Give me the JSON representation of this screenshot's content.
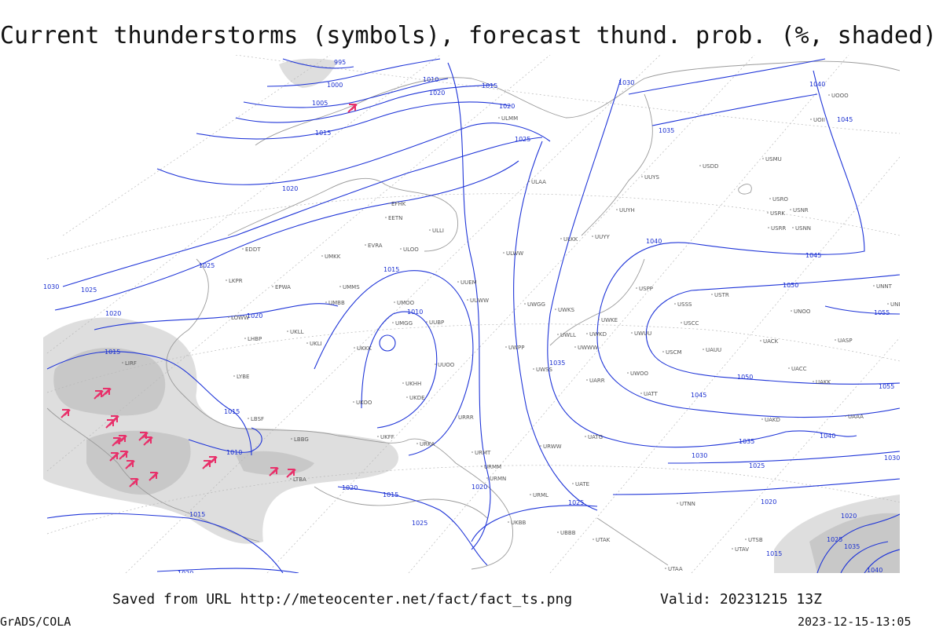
{
  "title": "Current thunderstorms (symbols), forecast thund. prob. (%, shaded)",
  "footer": {
    "saved": "Saved from URL http://meteocenter.net/fact/fact_ts.png",
    "valid": "Valid: 20231215 13Z",
    "credit": "GrADS/COLA",
    "timestamp": "2023-12-15-13:05"
  },
  "isobar_labels": [
    "995",
    "1000",
    "1005",
    "1010",
    "1015",
    "1020",
    "1015",
    "1020",
    "1025",
    "1030",
    "1035",
    "1040",
    "1045",
    "1020",
    "1025",
    "1030",
    "1025",
    "1020",
    "1020",
    "1015",
    "1010",
    "1015",
    "1015",
    "1010",
    "1040",
    "1045",
    "1050",
    "1055",
    "1050",
    "1045",
    "1035",
    "1055",
    "1040",
    "1035",
    "1030",
    "1025",
    "1025",
    "1020",
    "1020",
    "1015",
    "1025",
    "1020",
    "1015",
    "1020",
    "1030",
    "1025",
    "1020",
    "1035",
    "1040",
    "1015"
  ],
  "stations": [
    "ULAA",
    "ULLI",
    "EFHK",
    "EETN",
    "EVRA",
    "ULOO",
    "UMKK",
    "EPWA",
    "UMMS",
    "UMBB",
    "ULWW",
    "ULKK",
    "UUYY",
    "UUYH",
    "UUYS",
    "UUEM",
    "UUWW",
    "UKKK",
    "UKHH",
    "UKOO",
    "UKFF",
    "URKA",
    "UKDE",
    "UUOO",
    "UUBP",
    "UMGG",
    "UMOO",
    "LKPR",
    "EDDT",
    "LHBP",
    "LOWW",
    "UKLL",
    "UKLI",
    "LIRF",
    "LYBE",
    "LBSF",
    "LBBG",
    "LTBA",
    "URRR",
    "URWW",
    "URMT",
    "URMM",
    "URMN",
    "URML",
    "UATG",
    "UATE",
    "UATT",
    "UARR",
    "UWOO",
    "UWUU",
    "UWKE",
    "UWKD",
    "UWLL",
    "UWWW",
    "UWPP",
    "UWSS",
    "UWGG",
    "UWKS",
    "USPP",
    "USSS",
    "USCC",
    "USCM",
    "UAUU",
    "USTR",
    "UNOO",
    "UACK",
    "UASP",
    "UACC",
    "UAKK",
    "UAKD",
    "UAAA",
    "UTNN",
    "UTAK",
    "UBBB",
    "UTAA",
    "UTSB",
    "UTAV",
    "UNNT",
    "UNBB",
    "USDD",
    "USMU",
    "USRO",
    "USRR",
    "USNR",
    "USNN",
    "USRK",
    "UOOO",
    "UOII",
    "ULMM",
    "UKBB"
  ]
}
